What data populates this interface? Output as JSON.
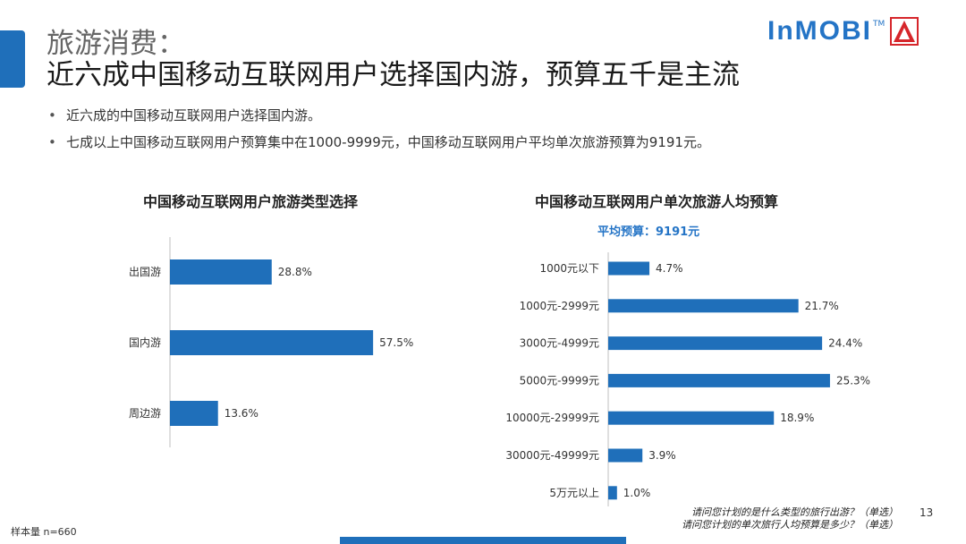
{
  "header": {
    "title_line1": "旅游消费：",
    "title_line2": "近六成中国移动互联网用户选择国内游，预算五千是主流",
    "logo_text": "InMOBI",
    "logo_tm": "TM"
  },
  "bullets": [
    "近六成的中国移动互联网用户选择国内游。",
    "七成以上中国移动互联网用户预算集中在1000-9999元，中国移动互联网用户平均单次旅游预算为9191元。"
  ],
  "colors": {
    "bar": "#1f6fba",
    "accent": "#2474c6",
    "axis": "#bfbfbf"
  },
  "chart_data": [
    {
      "type": "bar",
      "orientation": "horizontal",
      "title": "中国移动互联网用户旅游类型选择",
      "categories": [
        "出国游",
        "国内游",
        "周边游"
      ],
      "values": [
        28.8,
        57.5,
        13.6
      ],
      "value_labels": [
        "28.8%",
        "57.5%",
        "13.6%"
      ],
      "unit": "%",
      "grid": false,
      "legend": "none"
    },
    {
      "type": "bar",
      "orientation": "horizontal",
      "title": "中国移动互联网用户单次旅游人均预算",
      "note": "平均预算：9191元",
      "categories": [
        "1000元以下",
        "1000元-2999元",
        "3000元-4999元",
        "5000元-9999元",
        "10000元-29999元",
        "30000元-49999元",
        "5万元以上"
      ],
      "values": [
        4.7,
        21.7,
        24.4,
        25.3,
        18.9,
        3.9,
        1.0
      ],
      "value_labels": [
        "4.7%",
        "21.7%",
        "24.4%",
        "25.3%",
        "18.9%",
        "3.9%",
        "1.0%"
      ],
      "unit": "%",
      "grid": false,
      "legend": "none"
    }
  ],
  "footer": {
    "sample": "样本量 n=660",
    "question1": "请问您计划的是什么类型的旅行出游？（单选）",
    "question2": "请问您计划的单次旅行人均预算是多少？（单选）",
    "page_number": "13"
  }
}
